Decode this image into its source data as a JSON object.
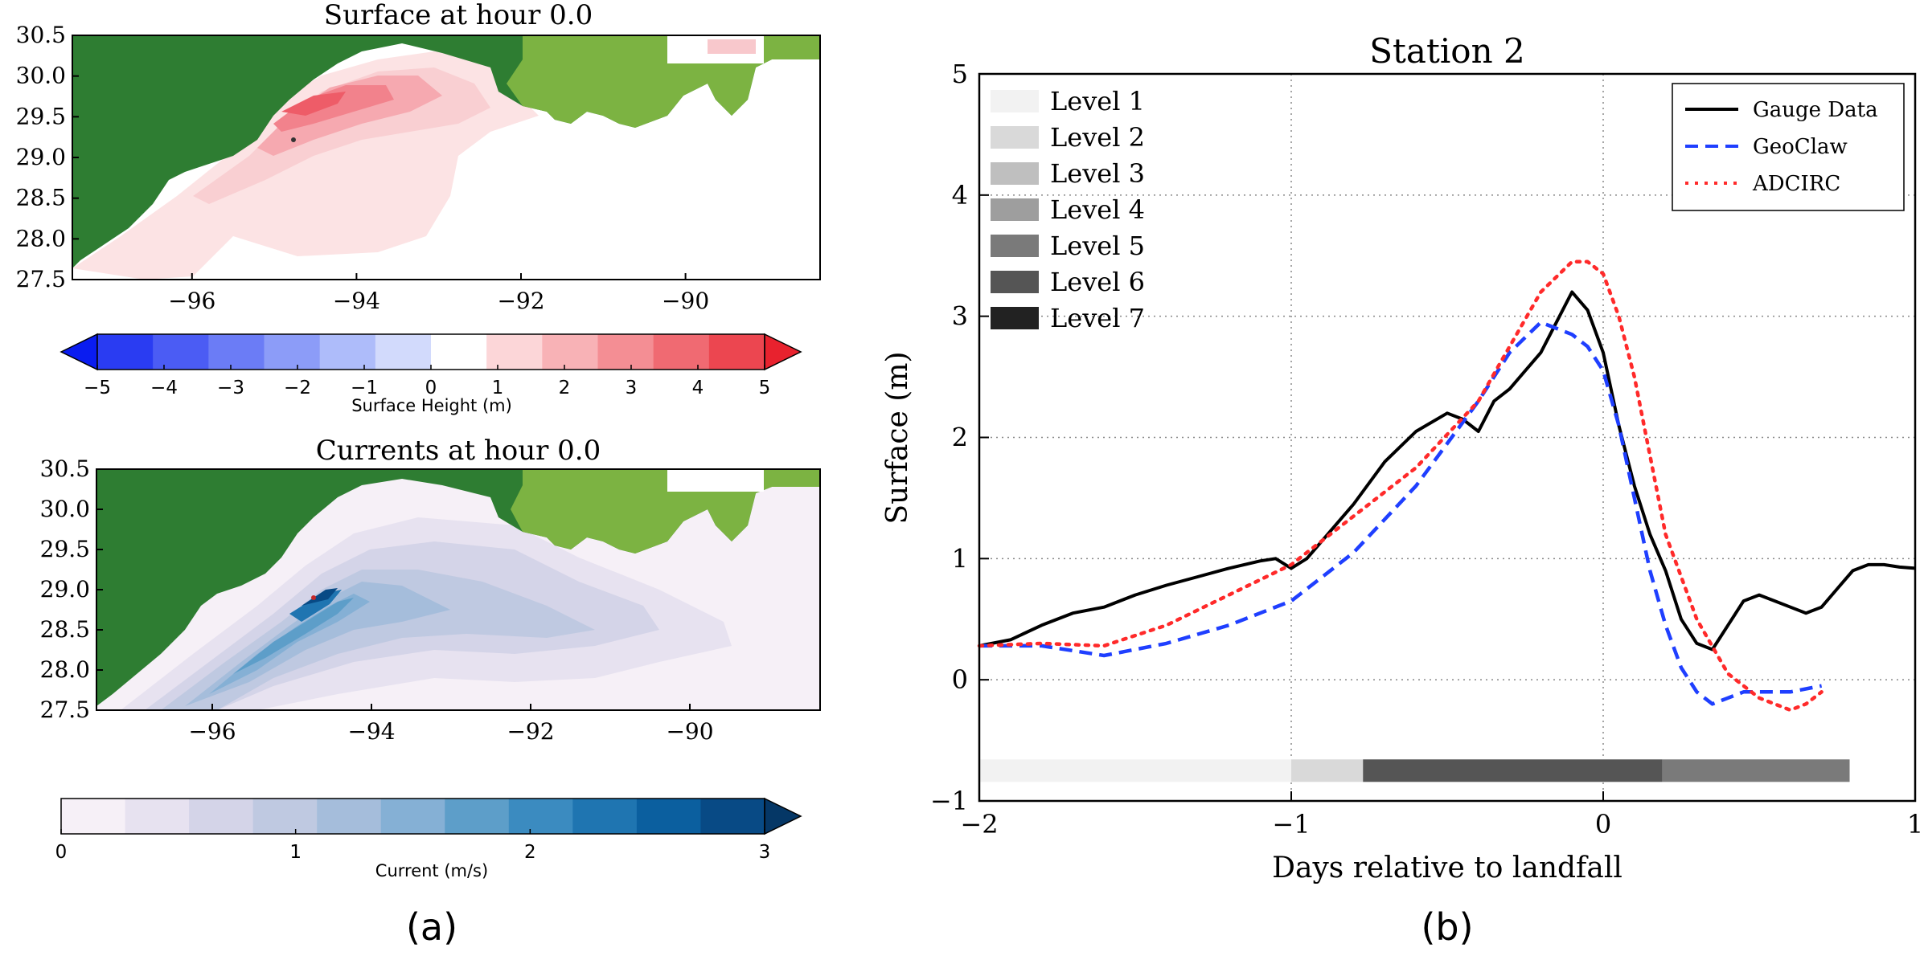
{
  "panel_a": {
    "caption": "(a)",
    "map1": {
      "title": "Surface at hour 0.0",
      "xticks": [
        "−96",
        "−94",
        "−92",
        "−90"
      ],
      "yticks": [
        "30.5",
        "30.0",
        "29.5",
        "29.0",
        "28.5",
        "28.0",
        "27.5"
      ],
      "colorbar": {
        "label": "Surface Height (m)",
        "ticks": [
          "−5",
          "−4",
          "−3",
          "−2",
          "−1",
          "0",
          "1",
          "2",
          "3",
          "4",
          "5"
        ],
        "colors": [
          "#0a1cf0",
          "#2a3cf2",
          "#4b5cf4",
          "#6b7cf6",
          "#8c9cf8",
          "#aebcfa",
          "#d2dafc",
          "#ffffff",
          "#fcd6d8",
          "#f8b2b6",
          "#f48e94",
          "#f06a72",
          "#ec4650",
          "#e8222e"
        ]
      },
      "colors": {
        "land_dark": "#2e7d32",
        "land_light": "#7cb342"
      }
    },
    "map2": {
      "title": "Currents at hour 0.0",
      "xticks": [
        "−96",
        "−94",
        "−92",
        "−90"
      ],
      "yticks": [
        "30.5",
        "30.0",
        "29.5",
        "29.0",
        "28.5",
        "28.0",
        "27.5"
      ],
      "colorbar": {
        "label": "Current (m/s)",
        "ticks": [
          "0",
          "1",
          "2",
          "3"
        ],
        "colors": [
          "#f6f0f7",
          "#e7e2f0",
          "#d4d4e8",
          "#bfc9e1",
          "#a5bddb",
          "#85b0d5",
          "#5d9ec9",
          "#3b8bc0",
          "#1f75b1",
          "#0b5f9f",
          "#084a85",
          "#053766"
        ]
      }
    }
  },
  "panel_b": {
    "caption": "(b)",
    "chart_data": {
      "type": "line",
      "title": "Station 2",
      "xlabel": "Days relative to landfall",
      "ylabel": "Surface (m)",
      "xlim": [
        -2,
        1
      ],
      "ylim": [
        -1,
        5
      ],
      "xticks": [
        "−2",
        "−1",
        "0",
        "1"
      ],
      "yticks": [
        "−1",
        "0",
        "1",
        "2",
        "3",
        "4",
        "5"
      ],
      "grid": true,
      "legend_position": "top-right",
      "series": [
        {
          "name": "Gauge Data",
          "color": "#000000",
          "dash": "solid",
          "x": [
            -2,
            -1.9,
            -1.8,
            -1.7,
            -1.6,
            -1.5,
            -1.4,
            -1.3,
            -1.2,
            -1.1,
            -1.05,
            -1.0,
            -0.95,
            -0.9,
            -0.8,
            -0.7,
            -0.6,
            -0.5,
            -0.45,
            -0.4,
            -0.35,
            -0.3,
            -0.25,
            -0.2,
            -0.15,
            -0.1,
            -0.05,
            0.0,
            0.05,
            0.1,
            0.15,
            0.2,
            0.25,
            0.3,
            0.35,
            0.4,
            0.45,
            0.5,
            0.55,
            0.6,
            0.65,
            0.7,
            0.75,
            0.8,
            0.85,
            0.9,
            0.95,
            1.0
          ],
          "y": [
            0.28,
            0.33,
            0.45,
            0.55,
            0.6,
            0.7,
            0.78,
            0.85,
            0.92,
            0.98,
            1.0,
            0.92,
            1.0,
            1.15,
            1.45,
            1.8,
            2.05,
            2.2,
            2.15,
            2.05,
            2.3,
            2.4,
            2.55,
            2.7,
            2.95,
            3.2,
            3.05,
            2.7,
            2.1,
            1.6,
            1.2,
            0.9,
            0.5,
            0.3,
            0.25,
            0.45,
            0.65,
            0.7,
            0.65,
            0.6,
            0.55,
            0.6,
            0.75,
            0.9,
            0.95,
            0.95,
            0.93,
            0.92
          ]
        },
        {
          "name": "GeoClaw",
          "color": "#1f3fff",
          "dash": "dashed",
          "x": [
            -2,
            -1.8,
            -1.6,
            -1.4,
            -1.2,
            -1.0,
            -0.8,
            -0.6,
            -0.4,
            -0.3,
            -0.2,
            -0.1,
            -0.05,
            0.0,
            0.05,
            0.1,
            0.15,
            0.2,
            0.25,
            0.3,
            0.35,
            0.4,
            0.45,
            0.5,
            0.6,
            0.7
          ],
          "y": [
            0.28,
            0.28,
            0.2,
            0.3,
            0.45,
            0.65,
            1.05,
            1.6,
            2.3,
            2.7,
            2.95,
            2.85,
            2.75,
            2.55,
            2.1,
            1.5,
            0.9,
            0.45,
            0.1,
            -0.1,
            -0.2,
            -0.15,
            -0.1,
            -0.1,
            -0.1,
            -0.05
          ]
        },
        {
          "name": "ADCIRC",
          "color": "#ff2a2a",
          "dash": "dotted",
          "x": [
            -2,
            -1.8,
            -1.6,
            -1.4,
            -1.2,
            -1.0,
            -0.8,
            -0.6,
            -0.4,
            -0.3,
            -0.2,
            -0.1,
            -0.05,
            0.0,
            0.05,
            0.1,
            0.15,
            0.2,
            0.3,
            0.4,
            0.5,
            0.6,
            0.65,
            0.7
          ],
          "y": [
            0.28,
            0.3,
            0.28,
            0.45,
            0.7,
            0.95,
            1.35,
            1.75,
            2.3,
            2.75,
            3.2,
            3.45,
            3.45,
            3.35,
            3.0,
            2.5,
            1.85,
            1.2,
            0.5,
            0.05,
            -0.15,
            -0.25,
            -0.2,
            -0.1
          ]
        }
      ],
      "level_legend": [
        {
          "label": "Level 1",
          "color": "#f2f2f2"
        },
        {
          "label": "Level 2",
          "color": "#d9d9d9"
        },
        {
          "label": "Level 3",
          "color": "#bfbfbf"
        },
        {
          "label": "Level 4",
          "color": "#9e9e9e"
        },
        {
          "label": "Level 5",
          "color": "#7a7a7a"
        },
        {
          "label": "Level 6",
          "color": "#555555"
        },
        {
          "label": "Level 7",
          "color": "#222222"
        }
      ],
      "level_bar": {
        "y": -0.75,
        "segments": [
          {
            "from": -2.0,
            "to": -1.0,
            "level": 1
          },
          {
            "from": -1.0,
            "to": -0.77,
            "level": 2
          },
          {
            "from": -0.77,
            "to": 0.19,
            "level": 6
          },
          {
            "from": 0.19,
            "to": 0.79,
            "level": 5
          }
        ]
      }
    }
  }
}
